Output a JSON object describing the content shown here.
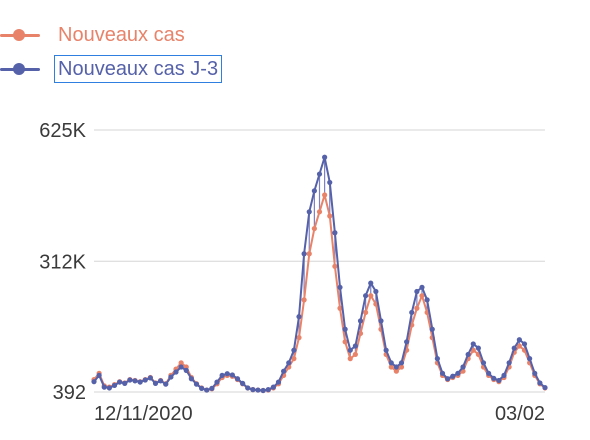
{
  "legend": {
    "items": [
      {
        "label": "Nouveaux cas",
        "color": "#e8836a"
      },
      {
        "label": "Nouveaux cas J-3",
        "color": "#5561a9"
      }
    ]
  },
  "chart_data": {
    "type": "line",
    "title": "",
    "xlabel": "",
    "ylabel": "",
    "y_ticks": [
      "625K",
      "312K",
      "392"
    ],
    "y_tick_values": [
      625000,
      312000,
      392
    ],
    "x_ticks": [
      "12/11/2020",
      "03/02"
    ],
    "ylim": [
      392,
      625000
    ],
    "grid": "horizontal",
    "legend_position": "top-left",
    "x_note": "daily points; peaks read from the chart",
    "series": [
      {
        "name": "Nouveaux cas",
        "color": "#e8836a",
        "values": [
          30000,
          45000,
          15000,
          12000,
          18000,
          25000,
          22000,
          30000,
          28000,
          25000,
          30000,
          35000,
          22000,
          28000,
          20000,
          40000,
          55000,
          70000,
          60000,
          35000,
          20000,
          10000,
          5000,
          8000,
          20000,
          35000,
          40000,
          38000,
          30000,
          20000,
          10000,
          6000,
          5000,
          4000,
          5000,
          10000,
          20000,
          40000,
          60000,
          80000,
          130000,
          220000,
          330000,
          390000,
          430000,
          470000,
          420000,
          300000,
          200000,
          120000,
          80000,
          90000,
          140000,
          190000,
          230000,
          210000,
          150000,
          90000,
          60000,
          50000,
          60000,
          100000,
          160000,
          200000,
          230000,
          190000,
          130000,
          70000,
          40000,
          30000,
          35000,
          40000,
          50000,
          80000,
          100000,
          90000,
          60000,
          40000,
          30000,
          25000,
          35000,
          60000,
          95000,
          110000,
          100000,
          70000,
          40000,
          20000,
          10000
        ]
      },
      {
        "name": "Nouveaux cas J-3",
        "color": "#5561a9",
        "values": [
          25000,
          40000,
          12000,
          10000,
          16000,
          24000,
          21000,
          29000,
          27000,
          24000,
          29000,
          34000,
          21000,
          27000,
          19000,
          36000,
          48000,
          60000,
          52000,
          32000,
          19000,
          9000,
          5000,
          9000,
          24000,
          40000,
          44000,
          41000,
          32000,
          21000,
          10000,
          6000,
          5000,
          4000,
          6000,
          12000,
          24000,
          50000,
          70000,
          100000,
          180000,
          330000,
          430000,
          480000,
          520000,
          560000,
          500000,
          380000,
          250000,
          150000,
          100000,
          110000,
          170000,
          230000,
          260000,
          240000,
          170000,
          100000,
          70000,
          60000,
          70000,
          120000,
          190000,
          240000,
          250000,
          220000,
          150000,
          80000,
          45000,
          32000,
          38000,
          45000,
          60000,
          90000,
          115000,
          105000,
          70000,
          45000,
          33000,
          28000,
          40000,
          70000,
          105000,
          125000,
          115000,
          80000,
          45000,
          22000,
          11000
        ]
      }
    ]
  }
}
